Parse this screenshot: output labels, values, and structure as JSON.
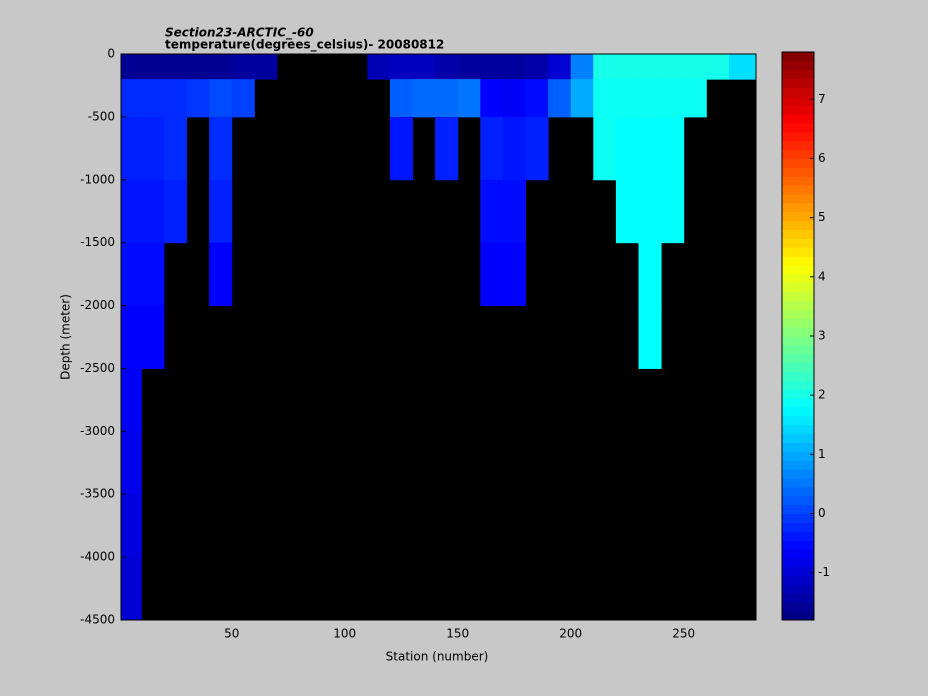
{
  "chart_data": {
    "type": "section",
    "title": "Section23-ARCTIC_-60",
    "subtitle": "temperature(degrees_celsius)- 20080812",
    "xlabel": "Station (number)",
    "ylabel": "Depth (meter)",
    "xlim": [
      1,
      282
    ],
    "xticks": [
      50,
      100,
      150,
      200,
      250
    ],
    "ylim": [
      -4500,
      0
    ],
    "yticks": [
      0,
      -500,
      -1000,
      -1500,
      -2000,
      -2500,
      -3000,
      -3500,
      -4000,
      -4500
    ],
    "clim": [
      -1.8,
      7.8
    ],
    "cticks": [
      -1,
      0,
      1,
      2,
      3,
      4,
      5,
      6,
      7
    ],
    "colormap": "jet",
    "background": "#000000",
    "x_edges": [
      1,
      10,
      20,
      30,
      40,
      50,
      60,
      70,
      80,
      90,
      100,
      110,
      120,
      130,
      140,
      150,
      160,
      170,
      180,
      190,
      200,
      210,
      220,
      230,
      240,
      250,
      260,
      270,
      282
    ],
    "y_edges": [
      0,
      -200,
      -500,
      -1000,
      -1500,
      -2000,
      -2500,
      -3000,
      -3500,
      -4000,
      -4500
    ],
    "values": [
      [
        -1.6,
        -1.6,
        -1.6,
        -1.6,
        -1.6,
        -1.5,
        -1.5,
        null,
        null,
        null,
        null,
        -1.3,
        -1.2,
        -1.2,
        -1.4,
        -1.5,
        -1.5,
        -1.5,
        -1.4,
        -1.0,
        0.6,
        2.0,
        2.0,
        2.0,
        2.0,
        2.0,
        2.0,
        1.5
      ],
      [
        -0.2,
        -0.2,
        -0.2,
        -0.1,
        0.1,
        0.0,
        null,
        null,
        null,
        null,
        null,
        null,
        0.3,
        0.4,
        0.4,
        0.5,
        -0.6,
        -0.7,
        -0.5,
        0.3,
        1.0,
        1.9,
        1.9,
        1.9,
        1.9,
        1.9,
        null,
        null
      ],
      [
        -0.3,
        -0.3,
        -0.2,
        null,
        -0.2,
        null,
        null,
        null,
        null,
        null,
        null,
        null,
        -0.4,
        null,
        -0.3,
        null,
        -0.3,
        -0.4,
        -0.3,
        null,
        null,
        1.9,
        1.8,
        1.8,
        1.8,
        null,
        null,
        null
      ],
      [
        -0.4,
        -0.4,
        -0.3,
        null,
        -0.3,
        null,
        null,
        null,
        null,
        null,
        null,
        null,
        null,
        null,
        null,
        null,
        -0.5,
        -0.5,
        null,
        null,
        null,
        null,
        1.8,
        1.8,
        1.8,
        null,
        null,
        null
      ],
      [
        -0.5,
        -0.5,
        null,
        null,
        -0.6,
        null,
        null,
        null,
        null,
        null,
        null,
        null,
        null,
        null,
        null,
        null,
        -0.6,
        -0.6,
        null,
        null,
        null,
        null,
        null,
        1.8,
        null,
        null,
        null,
        null
      ],
      [
        -0.6,
        -0.6,
        null,
        null,
        null,
        null,
        null,
        null,
        null,
        null,
        null,
        null,
        null,
        null,
        null,
        null,
        null,
        null,
        null,
        null,
        null,
        null,
        null,
        1.8,
        null,
        null,
        null,
        null
      ],
      [
        -0.7,
        null,
        null,
        null,
        null,
        null,
        null,
        null,
        null,
        null,
        null,
        null,
        null,
        null,
        null,
        null,
        null,
        null,
        null,
        null,
        null,
        null,
        null,
        null,
        null,
        null,
        null,
        null
      ],
      [
        -0.8,
        null,
        null,
        null,
        null,
        null,
        null,
        null,
        null,
        null,
        null,
        null,
        null,
        null,
        null,
        null,
        null,
        null,
        null,
        null,
        null,
        null,
        null,
        null,
        null,
        null,
        null,
        null
      ],
      [
        -0.9,
        null,
        null,
        null,
        null,
        null,
        null,
        null,
        null,
        null,
        null,
        null,
        null,
        null,
        null,
        null,
        null,
        null,
        null,
        null,
        null,
        null,
        null,
        null,
        null,
        null,
        null,
        null
      ],
      [
        -1.0,
        null,
        null,
        null,
        null,
        null,
        null,
        null,
        null,
        null,
        null,
        null,
        null,
        null,
        null,
        null,
        null,
        null,
        null,
        null,
        null,
        null,
        null,
        null,
        null,
        null,
        null,
        null
      ]
    ]
  }
}
